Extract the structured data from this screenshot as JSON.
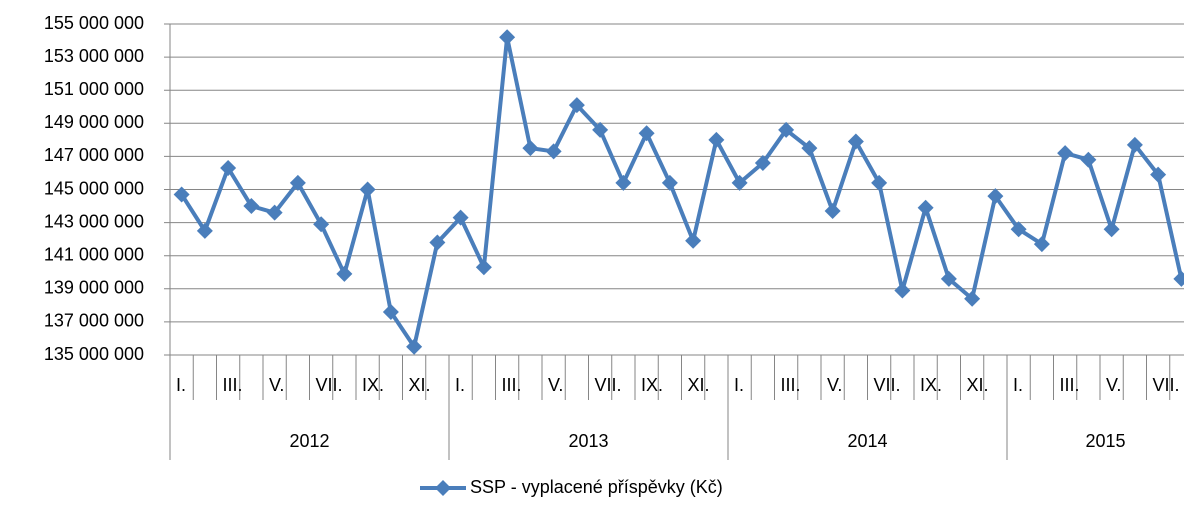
{
  "chart_data": {
    "type": "line",
    "categories": [
      "I.",
      null,
      "III.",
      null,
      "V.",
      null,
      "VII.",
      null,
      "IX.",
      null,
      "XI.",
      null,
      "I.",
      null,
      "III.",
      null,
      "V.",
      null,
      "VII.",
      null,
      "IX.",
      null,
      "XI.",
      null,
      "I.",
      null,
      "III.",
      null,
      "V.",
      null,
      "VII.",
      null,
      "IX.",
      null,
      "XI.",
      null,
      "I.",
      null,
      "III.",
      null,
      "V.",
      null,
      "VII.",
      null
    ],
    "category_years": [
      "2012",
      "2012",
      "2012",
      "2012",
      "2012",
      "2012",
      "2012",
      "2012",
      "2012",
      "2012",
      "2012",
      "2012",
      "2013",
      "2013",
      "2013",
      "2013",
      "2013",
      "2013",
      "2013",
      "2013",
      "2013",
      "2013",
      "2013",
      "2013",
      "2014",
      "2014",
      "2014",
      "2014",
      "2014",
      "2014",
      "2014",
      "2014",
      "2014",
      "2014",
      "2014",
      "2014",
      "2015",
      "2015",
      "2015",
      "2015",
      "2015",
      "2015",
      "2015",
      "2015"
    ],
    "series": [
      {
        "name": "SSP - vyplacené příspěvky (Kč)",
        "color": "#4a7ebb",
        "values": [
          144700000,
          142500000,
          146300000,
          144000000,
          143600000,
          145400000,
          142900000,
          139900000,
          145000000,
          137600000,
          135500000,
          141800000,
          143300000,
          140300000,
          154200000,
          147500000,
          147300000,
          150100000,
          148600000,
          145400000,
          148400000,
          145400000,
          141900000,
          148000000,
          145400000,
          146600000,
          148600000,
          147500000,
          143700000,
          147900000,
          145400000,
          138900000,
          143900000,
          139600000,
          138400000,
          144600000,
          142600000,
          141700000,
          147200000,
          146800000,
          142600000,
          147700000,
          145900000,
          139600000
        ]
      }
    ],
    "ylim": [
      135000000,
      155000000
    ],
    "yticks": [
      {
        "value": 135000000,
        "label": "135 000 000"
      },
      {
        "value": 137000000,
        "label": "137 000 000"
      },
      {
        "value": 139000000,
        "label": "139 000 000"
      },
      {
        "value": 141000000,
        "label": "141 000 000"
      },
      {
        "value": 143000000,
        "label": "143 000 000"
      },
      {
        "value": 145000000,
        "label": "145 000 000"
      },
      {
        "value": 147000000,
        "label": "147 000 000"
      },
      {
        "value": 149000000,
        "label": "149 000 000"
      },
      {
        "value": 151000000,
        "label": "151 000 000"
      },
      {
        "value": 153000000,
        "label": "153 000 000"
      },
      {
        "value": 155000000,
        "label": "155 000 000"
      }
    ],
    "grid": true,
    "legend": "bottom"
  }
}
